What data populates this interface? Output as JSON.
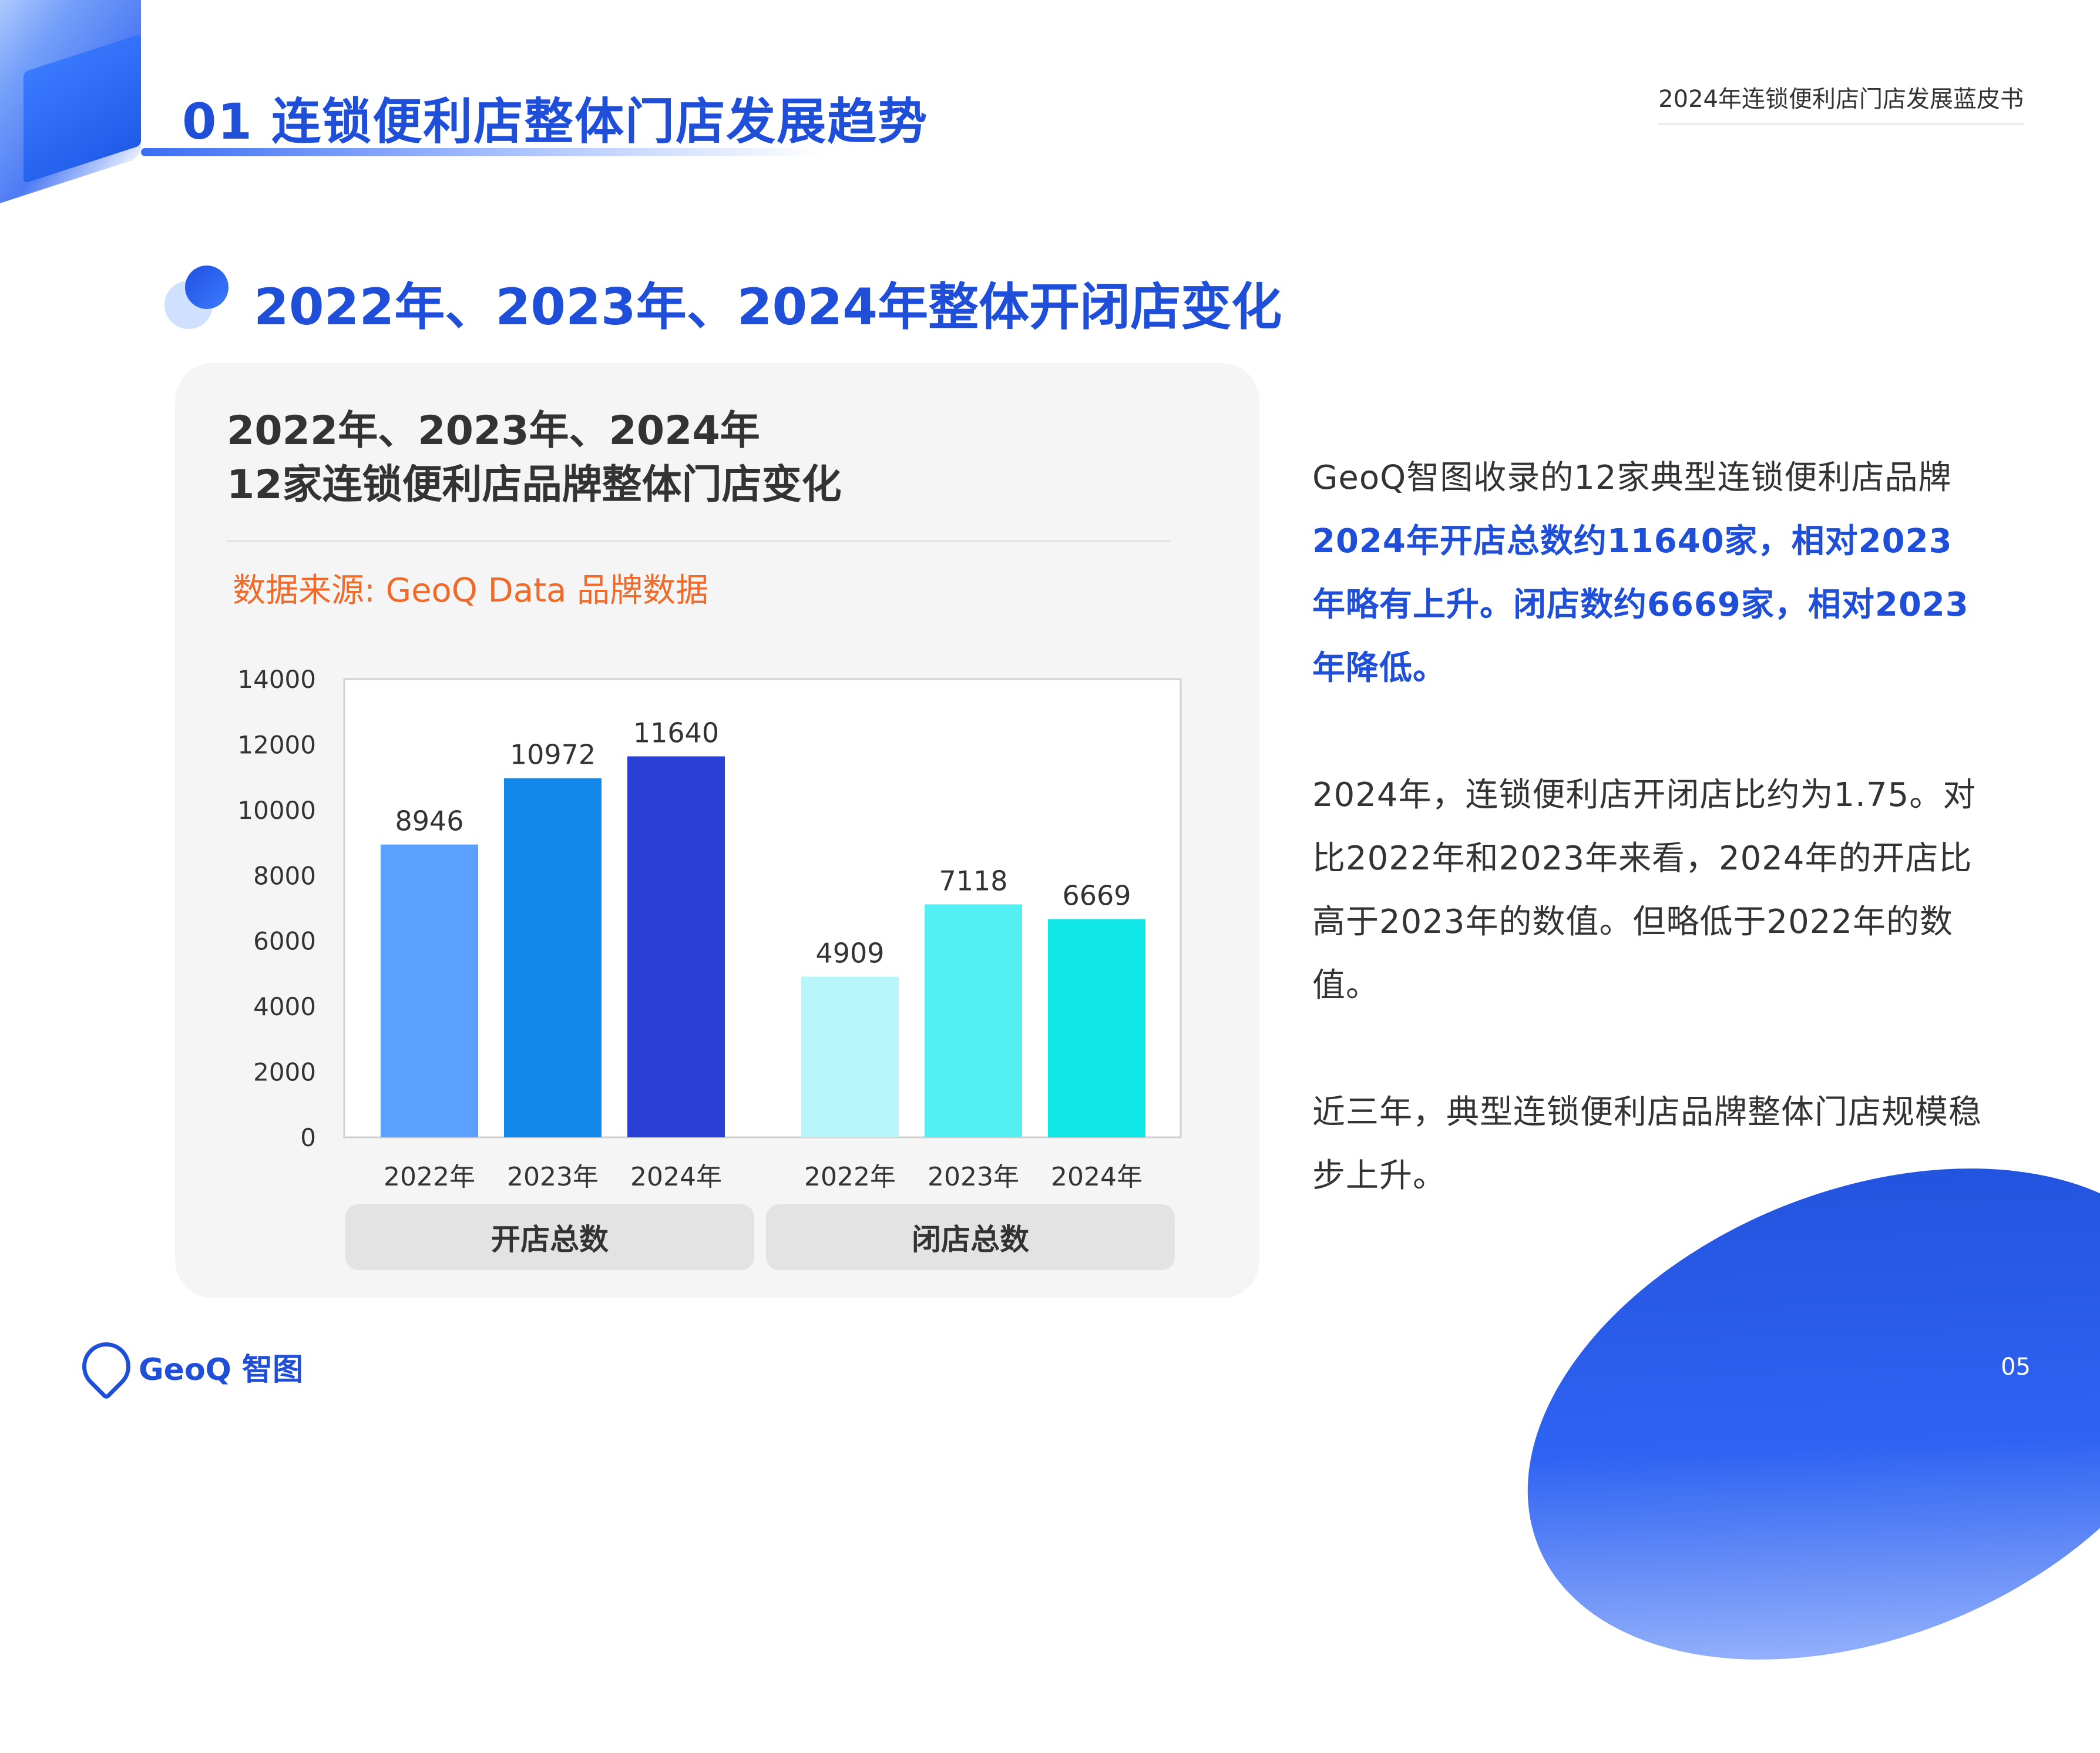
{
  "header": {
    "section_title": "01 连锁便利店整体门店发展趋势",
    "report_name": "2024年连锁便利店门店发展蓝皮书"
  },
  "section": {
    "title": "2022年、2023年、2024年整体开闭店变化"
  },
  "chart_card": {
    "title": "2022年、2023年、2024年\n12家连锁便利店品牌整体门店变化",
    "source": "数据来源: GeoQ Data 品牌数据"
  },
  "chart_data": {
    "type": "bar",
    "title": "2022年、2023年、2024年 12家连锁便利店品牌整体门店变化",
    "xlabel": "",
    "ylabel": "",
    "ylim": [
      0,
      14000
    ],
    "yticks": [
      0,
      2000,
      4000,
      6000,
      8000,
      10000,
      12000,
      14000
    ],
    "groups": [
      {
        "label": "开店总数",
        "categories": [
          "2022年",
          "2023年",
          "2024年"
        ],
        "values": [
          8946,
          10972,
          11640
        ],
        "colors": [
          "#5aa0ff",
          "#1289ea",
          "#2a3fd4"
        ]
      },
      {
        "label": "闭店总数",
        "categories": [
          "2022年",
          "2023年",
          "2024年"
        ],
        "values": [
          4909,
          7118,
          6669
        ],
        "colors": [
          "#b9f6fb",
          "#54eff3",
          "#11e6e6"
        ]
      }
    ],
    "grid": false,
    "legend": "none"
  },
  "side_text": {
    "p1_plain": "GeoQ智图收录的12家典型连锁便利店品牌",
    "p1_highlight": "2024年开店总数约11640家，相对2023年略有上升。闭店数约6669家，相对2023年降低。",
    "p2": "2024年，连锁便利店开闭店比约为1.75。对比2022年和2023年来看，2024年的开店比高于2023年的数值。但略低于2022年的数值。",
    "p3": "近三年，典型连锁便利店品牌整体门店规模稳步上升。"
  },
  "footer": {
    "logo_text": "GeoQ 智图",
    "page_number": "05"
  }
}
